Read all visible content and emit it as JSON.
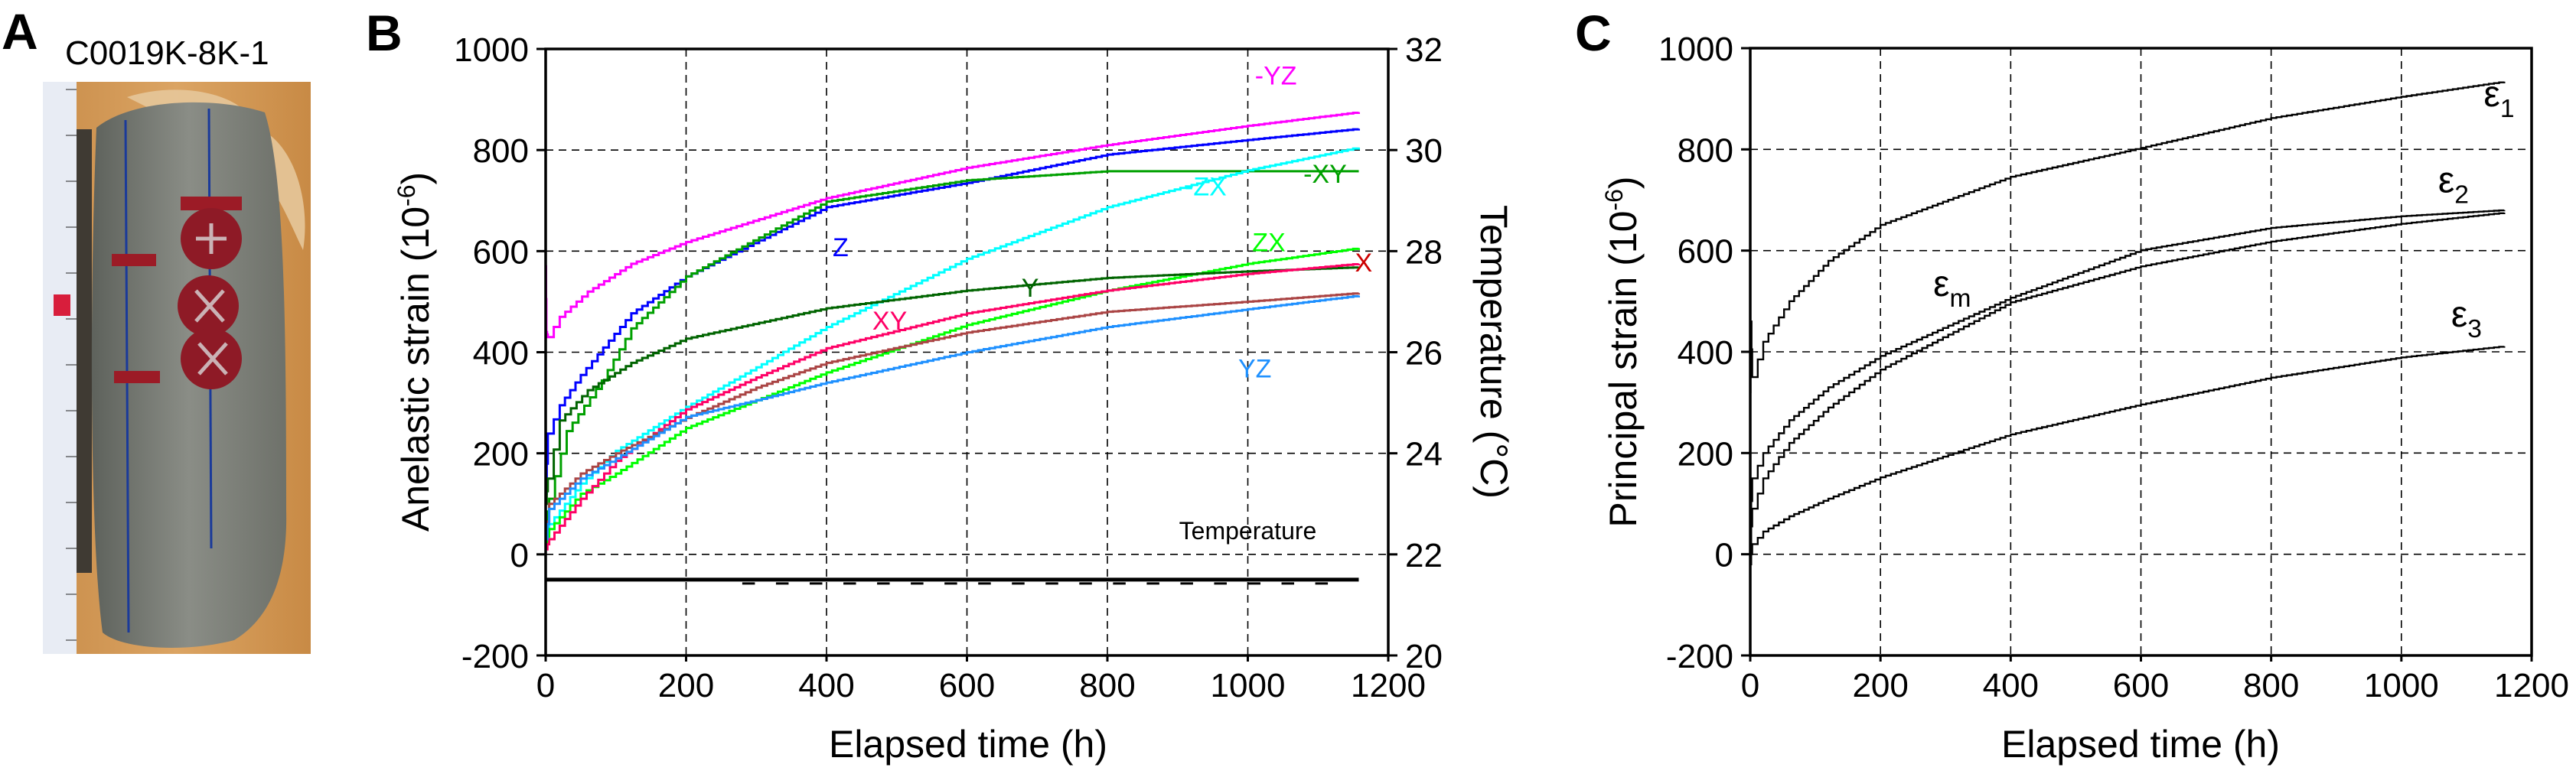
{
  "panels": {
    "a": {
      "letter": "A",
      "sample_id": "C0019K-8K-1",
      "photo_description": "Rock core specimen with strain gauges beside measuring tape"
    },
    "b": {
      "letter": "B"
    },
    "c": {
      "letter": "C"
    }
  },
  "chart_data": [
    {
      "id": "anelastic",
      "type": "line",
      "title": "",
      "xlabel": "Elapsed time (h)",
      "ylabel": "Anelastic strain (10",
      "ylabel_sup": "-6",
      "ylabel_end": ")",
      "y2label": "Temperature (°C)",
      "xlim": [
        0,
        1200
      ],
      "ylim": [
        -200,
        1000
      ],
      "y2lim": [
        20,
        32
      ],
      "xticks": [
        0,
        200,
        400,
        600,
        800,
        1000,
        1200
      ],
      "yticks": [
        -200,
        0,
        200,
        400,
        600,
        800,
        1000
      ],
      "y2ticks": [
        20,
        22,
        24,
        26,
        28,
        30,
        32
      ],
      "grid": true,
      "series": [
        {
          "name": "-YZ",
          "color": "#ff00ff",
          "label_at": [
            1040,
            930
          ],
          "x": [
            0,
            1,
            3,
            20,
            60,
            122,
            200,
            400,
            600,
            800,
            1000,
            1158
          ],
          "y": [
            570,
            440,
            430,
            470,
            520,
            575,
            618,
            705,
            765,
            810,
            848,
            875
          ]
        },
        {
          "name": "Z",
          "color": "#0000ff",
          "label_at": [
            420,
            590
          ],
          "x": [
            0,
            3,
            20,
            50,
            122,
            200,
            400,
            600,
            800,
            1000,
            1158
          ],
          "y": [
            120,
            239,
            295,
            355,
            477,
            550,
            687,
            735,
            791,
            820,
            842
          ]
        },
        {
          "name": "-XY",
          "color": "#00a000",
          "label_at": [
            1110,
            735
          ],
          "x": [
            0,
            5,
            30,
            80,
            122,
            200,
            400,
            600,
            800,
            1000,
            1158
          ],
          "y": [
            60,
            110,
            244,
            344,
            447,
            550,
            698,
            740,
            758,
            758,
            758
          ]
        },
        {
          "name": "-ZX",
          "color": "#00ffff",
          "label_at": [
            940,
            710
          ],
          "x": [
            0,
            5,
            50,
            100,
            200,
            300,
            400,
            600,
            800,
            1000,
            1158
          ],
          "y": [
            30,
            60,
            140,
            205,
            292,
            370,
            450,
            585,
            687,
            760,
            805
          ]
        },
        {
          "name": "ZX",
          "color": "#00ff00",
          "label_at": [
            1030,
            600
          ],
          "x": [
            0,
            5,
            50,
            100,
            200,
            300,
            400,
            600,
            800,
            1000,
            1158
          ],
          "y": [
            20,
            50,
            120,
            160,
            250,
            305,
            360,
            454,
            522,
            575,
            606
          ]
        },
        {
          "name": "Y",
          "color": "#006400",
          "label_at": [
            690,
            510
          ],
          "x": [
            0,
            3,
            20,
            60,
            122,
            200,
            400,
            600,
            800,
            1000,
            1158
          ],
          "y": [
            100,
            150,
            265,
            325,
            379,
            427,
            487,
            522,
            547,
            560,
            568
          ]
        },
        {
          "name": "XY",
          "color": "#ff0066",
          "label_at": [
            490,
            445
          ],
          "x": [
            0,
            5,
            50,
            100,
            200,
            300,
            400,
            600,
            800,
            1000,
            1158
          ],
          "y": [
            10,
            30,
            110,
            185,
            287,
            350,
            408,
            477,
            522,
            555,
            575
          ]
        },
        {
          "name": "X",
          "color": "#aa4444",
          "label_at": [
            1165,
            560
          ],
          "label_color": "#cc0000",
          "x": [
            0,
            5,
            50,
            100,
            200,
            300,
            400,
            600,
            800,
            1000,
            1158
          ],
          "y": [
            30,
            100,
            160,
            200,
            270,
            330,
            379,
            439,
            480,
            500,
            517
          ]
        },
        {
          "name": "YZ",
          "color": "#1e90ff",
          "label_at": [
            1010,
            350
          ],
          "x": [
            0,
            5,
            50,
            100,
            200,
            300,
            400,
            600,
            800,
            1000,
            1158
          ],
          "y": [
            30,
            90,
            150,
            190,
            272,
            305,
            340,
            400,
            450,
            485,
            512
          ]
        }
      ],
      "temperature_series": {
        "name": "Temperature",
        "color": "#000000",
        "axis": "right",
        "x": [
          0,
          1158
        ],
        "y": [
          21.5,
          21.5
        ],
        "label_at": [
          1000,
          22.3
        ]
      }
    },
    {
      "id": "principal",
      "type": "line",
      "title": "",
      "xlabel": "Elapsed time (h)",
      "ylabel": "Principal strain (10",
      "ylabel_sup": "-6",
      "ylabel_end": ")",
      "xlim": [
        0,
        1200
      ],
      "ylim": [
        -200,
        1000
      ],
      "xticks": [
        0,
        200,
        400,
        600,
        800,
        1000,
        1200
      ],
      "yticks": [
        -200,
        0,
        200,
        400,
        600,
        800,
        1000
      ],
      "grid": true,
      "series": [
        {
          "name": "ε",
          "sub": "1",
          "color": "#000000",
          "label_at": [
            1150,
            885
          ],
          "x": [
            0,
            1,
            3,
            20,
            60,
            120,
            200,
            400,
            600,
            800,
            1000,
            1158
          ],
          "y": [
            320,
            460,
            350,
            420,
            500,
            580,
            651,
            746,
            803,
            862,
            904,
            934
          ]
        },
        {
          "name": "ε",
          "sub": "2",
          "color": "#000000",
          "label_at": [
            1080,
            715
          ],
          "x": [
            0,
            3,
            20,
            60,
            120,
            200,
            400,
            600,
            800,
            1000,
            1158
          ],
          "y": [
            60,
            150,
            200,
            265,
            330,
            392,
            507,
            601,
            645,
            668,
            680
          ]
        },
        {
          "name": "ε",
          "sub": "m",
          "color": "#000000",
          "label_at": [
            310,
            510
          ],
          "x": [
            0,
            3,
            20,
            60,
            120,
            200,
            400,
            600,
            800,
            1000,
            1158
          ],
          "y": [
            20,
            90,
            150,
            220,
            290,
            365,
            498,
            569,
            618,
            653,
            675
          ]
        },
        {
          "name": "ε",
          "sub": "3",
          "color": "#000000",
          "label_at": [
            1100,
            450
          ],
          "x": [
            0,
            3,
            20,
            60,
            120,
            200,
            400,
            600,
            800,
            1000,
            1158
          ],
          "y": [
            -20,
            20,
            45,
            75,
            110,
            152,
            237,
            296,
            349,
            389,
            411
          ]
        }
      ]
    }
  ]
}
